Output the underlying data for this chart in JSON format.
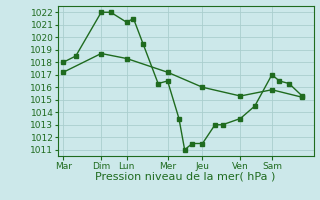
{
  "line1_x": [
    0,
    0.33,
    1.0,
    1.25,
    1.67,
    1.85,
    2.1,
    2.5,
    2.75,
    3.05,
    3.2,
    3.4,
    3.67,
    4.0,
    4.2,
    4.67,
    5.05,
    5.5,
    5.7,
    5.95,
    6.3
  ],
  "line1_y": [
    1018.0,
    1018.5,
    1022.0,
    1022.0,
    1021.2,
    1021.5,
    1019.5,
    1016.3,
    1016.5,
    1013.5,
    1011.0,
    1011.5,
    1011.5,
    1013.0,
    1013.0,
    1013.5,
    1014.5,
    1017.0,
    1016.5,
    1016.3,
    1015.3
  ],
  "line2_x": [
    0,
    1.0,
    1.67,
    2.75,
    3.67,
    4.67,
    5.5,
    6.3
  ],
  "line2_y": [
    1017.2,
    1018.7,
    1018.3,
    1017.2,
    1016.0,
    1015.3,
    1015.8,
    1015.2
  ],
  "line_color": "#1f6b1f",
  "bg_color": "#cce8ea",
  "grid_color": "#aacece",
  "ylim": [
    1010.5,
    1022.5
  ],
  "yticks": [
    1011,
    1012,
    1013,
    1014,
    1015,
    1016,
    1017,
    1018,
    1019,
    1020,
    1021,
    1022
  ],
  "day_positions": [
    0,
    1.0,
    1.67,
    2.75,
    3.67,
    4.67,
    5.5,
    6.3
  ],
  "xlabels": [
    "Mar",
    "Dim",
    "Lun",
    "Mer",
    "Jeu",
    "Ven",
    "Sam"
  ],
  "xlabel": "Pression niveau de la mer( hPa )",
  "xlabel_fontsize": 8,
  "tick_fontsize": 6.5,
  "marker_size": 2.5,
  "line_width": 1.0
}
